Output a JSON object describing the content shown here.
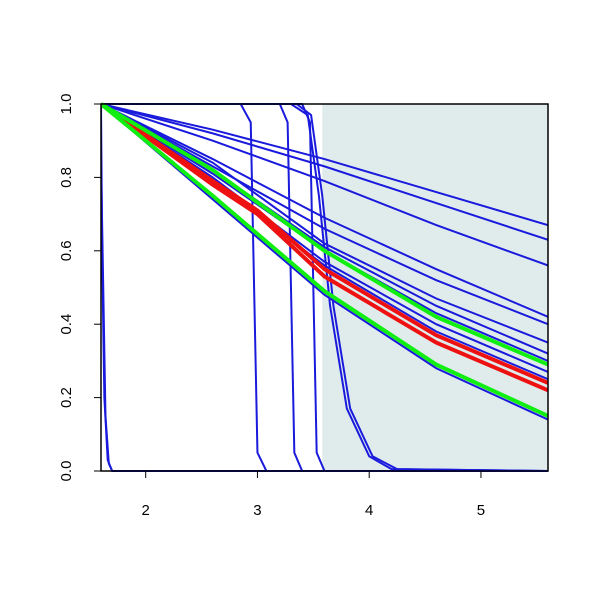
{
  "chart_data": {
    "type": "line",
    "xlim": [
      1.6,
      5.6
    ],
    "ylim": [
      0,
      1
    ],
    "xticks": [
      2,
      3,
      4,
      5
    ],
    "yticks": [
      {
        "value": 0,
        "label": "0.0"
      },
      {
        "value": 0.2,
        "label": "0.2"
      },
      {
        "value": 0.4,
        "label": "0.4"
      },
      {
        "value": 0.6,
        "label": "0.6"
      },
      {
        "value": 0.8,
        "label": "0.8"
      },
      {
        "value": 1,
        "label": "1.0"
      }
    ],
    "highlight_x": [
      3.58,
      5.6
    ],
    "highlight_color": "#e0ecec",
    "series": [
      {
        "color": "#1a1adc",
        "x": [
          1.6,
          2.6,
          3.6,
          4.6,
          5.6
        ],
        "values": [
          1,
          0.93,
          0.85,
          0.76,
          0.67
        ]
      },
      {
        "color": "#1a1adc",
        "x": [
          1.6,
          2.6,
          3.6,
          4.6,
          5.6
        ],
        "values": [
          1,
          0.92,
          0.83,
          0.73,
          0.63
        ]
      },
      {
        "color": "#1a1adc",
        "x": [
          1.6,
          2.6,
          3.6,
          4.6,
          5.6
        ],
        "values": [
          1,
          0.9,
          0.79,
          0.67,
          0.56
        ]
      },
      {
        "color": "#1a1adc",
        "x": [
          1.6,
          2.6,
          3.6,
          4.6,
          5.6
        ],
        "values": [
          1,
          0.85,
          0.69,
          0.55,
          0.42
        ]
      },
      {
        "color": "#1a1adc",
        "x": [
          1.6,
          2.6,
          3.6,
          4.6,
          5.6
        ],
        "values": [
          1,
          0.83,
          0.66,
          0.52,
          0.4
        ]
      },
      {
        "color": "#1a1adc",
        "x": [
          1.6,
          2.6,
          3.6,
          4.6,
          5.6
        ],
        "values": [
          1,
          0.84,
          0.62,
          0.47,
          0.35
        ]
      },
      {
        "color": "#1a1adc",
        "x": [
          1.6,
          2.6,
          3.6,
          4.6,
          5.6
        ],
        "values": [
          1,
          0.82,
          0.61,
          0.45,
          0.32
        ]
      },
      {
        "color": "#1a1adc",
        "x": [
          1.6,
          2.6,
          3.6,
          4.6,
          5.6
        ],
        "values": [
          1,
          0.81,
          0.6,
          0.43,
          0.3
        ]
      },
      {
        "color": "#1a1adc",
        "x": [
          1.6,
          2.6,
          3.6,
          4.6,
          5.6
        ],
        "values": [
          1,
          0.8,
          0.57,
          0.4,
          0.27
        ]
      },
      {
        "color": "#1a1adc",
        "x": [
          1.6,
          2.6,
          3.6,
          4.6,
          5.6
        ],
        "values": [
          1,
          0.79,
          0.56,
          0.38,
          0.25
        ]
      },
      {
        "color": "#1a1adc",
        "x": [
          1.6,
          2.6,
          3.6,
          4.6,
          5.6
        ],
        "values": [
          1,
          0.74,
          0.48,
          0.28,
          0.14
        ]
      },
      {
        "color": "#1a1adc",
        "x": [
          1.6,
          1.62,
          1.64,
          1.67,
          1.7,
          5.6
        ],
        "values": [
          0.85,
          0.5,
          0.15,
          0.02,
          0,
          0
        ]
      },
      {
        "color": "#1a1adc",
        "x": [
          1.6,
          1.61,
          1.63,
          1.66,
          1.7,
          5.6
        ],
        "values": [
          1,
          0.6,
          0.2,
          0.03,
          0,
          0
        ]
      },
      {
        "color": "#1a1adc",
        "x": [
          1.6,
          2.85,
          2.94,
          2.97,
          3.0,
          3.08,
          5.6
        ],
        "values": [
          1,
          1,
          0.95,
          0.5,
          0.05,
          0,
          0
        ]
      },
      {
        "color": "#1a1adc",
        "x": [
          1.6,
          3.2,
          3.27,
          3.3,
          3.33,
          3.4,
          5.6
        ],
        "values": [
          1,
          1,
          0.95,
          0.5,
          0.05,
          0,
          0
        ]
      },
      {
        "color": "#1a1adc",
        "x": [
          1.6,
          3.4,
          3.47,
          3.5,
          3.53,
          3.6,
          5.6
        ],
        "values": [
          1,
          1,
          0.95,
          0.5,
          0.05,
          0,
          0
        ]
      },
      {
        "color": "#1a1adc",
        "x": [
          1.6,
          3.3,
          3.45,
          3.55,
          3.65,
          3.8,
          4.0,
          4.2,
          5.6
        ],
        "values": [
          1,
          1,
          0.97,
          0.75,
          0.45,
          0.17,
          0.04,
          0.005,
          0
        ]
      },
      {
        "color": "#1a1adc",
        "x": [
          1.6,
          3.35,
          3.48,
          3.58,
          3.68,
          3.83,
          4.03,
          4.25,
          5.6
        ],
        "values": [
          1,
          1,
          0.97,
          0.75,
          0.45,
          0.17,
          0.04,
          0.005,
          0
        ]
      },
      {
        "color": "#ee1111",
        "x": [
          1.6,
          2.6,
          3.0,
          3.6,
          4.6,
          5.6
        ],
        "values": [
          1,
          0.78,
          0.7,
          0.53,
          0.35,
          0.22
        ]
      },
      {
        "color": "#ee1111",
        "x": [
          1.6,
          2.6,
          3.0,
          3.6,
          4.6,
          5.6
        ],
        "values": [
          1,
          0.79,
          0.71,
          0.55,
          0.37,
          0.24
        ]
      },
      {
        "color": "#11ee11",
        "x": [
          1.6,
          2.6,
          3.6,
          4.6,
          5.6
        ],
        "values": [
          1,
          0.82,
          0.6,
          0.42,
          0.29
        ]
      },
      {
        "color": "#11ee11",
        "x": [
          1.6,
          2.6,
          3.6,
          4.6,
          5.6
        ],
        "values": [
          1,
          0.75,
          0.49,
          0.29,
          0.15
        ]
      }
    ]
  }
}
